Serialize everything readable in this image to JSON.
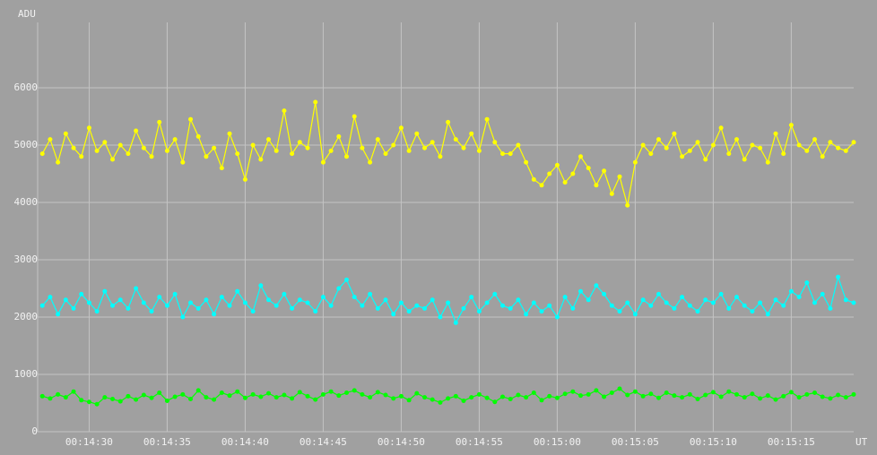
{
  "chart_data": {
    "type": "line",
    "y_label": "ADU",
    "x_label": "UT",
    "xlim": [
      866.7,
      919
    ],
    "ylim": [
      0,
      7000
    ],
    "xticks": [
      {
        "value": 870,
        "label": "00:14:30"
      },
      {
        "value": 875,
        "label": "00:14:35"
      },
      {
        "value": 880,
        "label": "00:14:40"
      },
      {
        "value": 885,
        "label": "00:14:45"
      },
      {
        "value": 890,
        "label": "00:14:50"
      },
      {
        "value": 895,
        "label": "00:14:55"
      },
      {
        "value": 900,
        "label": "00:15:00"
      },
      {
        "value": 905,
        "label": "00:15:05"
      },
      {
        "value": 910,
        "label": "00:15:10"
      },
      {
        "value": 915,
        "label": "00:15:15"
      }
    ],
    "yticks": [
      0,
      1000,
      2000,
      3000,
      4000,
      5000,
      6000
    ],
    "grid": true,
    "x": [
      867,
      867.5,
      868,
      868.5,
      869,
      869.5,
      870,
      870.5,
      871,
      871.5,
      872,
      872.5,
      873,
      873.5,
      874,
      874.5,
      875,
      875.5,
      876,
      876.5,
      877,
      877.5,
      878,
      878.5,
      879,
      879.5,
      880,
      880.5,
      881,
      881.5,
      882,
      882.5,
      883,
      883.5,
      884,
      884.5,
      885,
      885.5,
      886,
      886.5,
      887,
      887.5,
      888,
      888.5,
      889,
      889.5,
      890,
      890.5,
      891,
      891.5,
      892,
      892.5,
      893,
      893.5,
      894,
      894.5,
      895,
      895.5,
      896,
      896.5,
      897,
      897.5,
      898,
      898.5,
      899,
      899.5,
      900,
      900.5,
      901,
      901.5,
      902,
      902.5,
      903,
      903.5,
      904,
      904.5,
      905,
      905.5,
      906,
      906.5,
      907,
      907.5,
      908,
      908.5,
      909,
      909.5,
      910,
      910.5,
      911,
      911.5,
      912,
      912.5,
      913,
      913.5,
      914,
      914.5,
      915,
      915.5,
      916,
      916.5,
      917,
      917.5,
      918,
      918.5,
      919
    ],
    "series": [
      {
        "color": "#ffff00",
        "values": [
          4850,
          5100,
          4700,
          5200,
          4950,
          4800,
          5300,
          4900,
          5050,
          4750,
          5000,
          4850,
          5250,
          4950,
          4800,
          5400,
          4900,
          5100,
          4700,
          5450,
          5150,
          4800,
          4950,
          4600,
          5200,
          4850,
          4400,
          5000,
          4750,
          5100,
          4900,
          5600,
          4850,
          5050,
          4950,
          5750,
          4700,
          4900,
          5150,
          4800,
          5500,
          4950,
          4700,
          5100,
          4850,
          5000,
          5300,
          4900,
          5200,
          4950,
          5050,
          4800,
          5400,
          5100,
          4950,
          5200,
          4900,
          5450,
          5050,
          4850,
          4850,
          5000,
          4700,
          4400,
          4300,
          4500,
          4650,
          4350,
          4500,
          4800,
          4600,
          4300,
          4550,
          4150,
          4450,
          3950,
          4700,
          5000,
          4850,
          5100,
          4950,
          5200,
          4800,
          4900,
          5050,
          4750,
          5000,
          5300,
          4850,
          5100,
          4750,
          5000,
          4950,
          4700,
          5200,
          4850,
          5350,
          5000,
          4900,
          5100,
          4800,
          5050,
          4950,
          4900,
          5050
        ]
      },
      {
        "color": "#00ffff",
        "values": [
          2200,
          2350,
          2050,
          2300,
          2150,
          2400,
          2250,
          2100,
          2450,
          2200,
          2300,
          2150,
          2500,
          2250,
          2100,
          2350,
          2200,
          2400,
          2000,
          2250,
          2150,
          2300,
          2050,
          2350,
          2200,
          2450,
          2250,
          2100,
          2550,
          2300,
          2200,
          2400,
          2150,
          2300,
          2250,
          2100,
          2350,
          2200,
          2500,
          2650,
          2350,
          2200,
          2400,
          2150,
          2300,
          2050,
          2250,
          2100,
          2200,
          2150,
          2300,
          2000,
          2250,
          1900,
          2150,
          2350,
          2100,
          2250,
          2400,
          2200,
          2150,
          2300,
          2050,
          2250,
          2100,
          2200,
          2000,
          2350,
          2150,
          2450,
          2300,
          2550,
          2400,
          2200,
          2100,
          2250,
          2050,
          2300,
          2200,
          2400,
          2250,
          2150,
          2350,
          2200,
          2100,
          2300,
          2250,
          2400,
          2150,
          2350,
          2200,
          2100,
          2250,
          2050,
          2300,
          2200,
          2450,
          2350,
          2600,
          2250,
          2400,
          2150,
          2700,
          2300,
          2250
        ]
      },
      {
        "color": "#00ff00",
        "values": [
          620,
          580,
          650,
          600,
          700,
          550,
          520,
          480,
          600,
          570,
          530,
          620,
          560,
          640,
          590,
          680,
          540,
          610,
          650,
          570,
          720,
          600,
          560,
          680,
          630,
          700,
          590,
          650,
          610,
          670,
          600,
          640,
          580,
          690,
          620,
          560,
          650,
          700,
          630,
          680,
          720,
          650,
          600,
          690,
          640,
          580,
          620,
          550,
          670,
          600,
          560,
          510,
          580,
          620,
          540,
          600,
          650,
          590,
          520,
          610,
          570,
          640,
          600,
          680,
          550,
          620,
          590,
          660,
          700,
          630,
          650,
          720,
          610,
          680,
          750,
          640,
          700,
          620,
          660,
          590,
          680,
          630,
          600,
          650,
          570,
          640,
          690,
          610,
          700,
          650,
          600,
          660,
          580,
          630,
          560,
          620,
          690,
          600,
          650,
          680,
          610,
          580,
          640,
          600,
          650
        ]
      }
    ]
  }
}
